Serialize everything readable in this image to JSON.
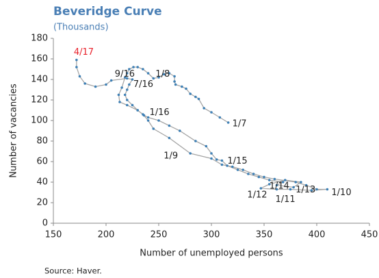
{
  "chart_data": {
    "type": "connected-scatter",
    "title": "Beveridge Curve",
    "subtitle": "(Thousands)",
    "x_label": "Number of unemployed persons",
    "y_label": "Number of vacancies",
    "source": "Source: Haver.",
    "xlim": [
      150,
      450
    ],
    "xticks": [
      150,
      200,
      250,
      300,
      350,
      400,
      450
    ],
    "ylim": [
      0,
      180
    ],
    "yticks": [
      0,
      20,
      40,
      60,
      80,
      100,
      120,
      140,
      160,
      180
    ],
    "line_color": "#a6a6a6",
    "marker_color": "#3e80b5",
    "point_label_color": "#222222",
    "latest_label_color": "#e8202a",
    "x": [
      316,
      308,
      300,
      293,
      288,
      285,
      280,
      276,
      272,
      266,
      265,
      265,
      260,
      255,
      250,
      245,
      240,
      235,
      230,
      226,
      222,
      220,
      218,
      215,
      212,
      213,
      220,
      230,
      235,
      240,
      245,
      260,
      280,
      300,
      310,
      320,
      330,
      340,
      350,
      360,
      380,
      390,
      400,
      410,
      395,
      375,
      362,
      347,
      355,
      370,
      385,
      378,
      362,
      368,
      355,
      345,
      335,
      325,
      315,
      310,
      305,
      300,
      295,
      285,
      270,
      260,
      250,
      240,
      236,
      230,
      225,
      220,
      218,
      220,
      222,
      225,
      220,
      205,
      200,
      190,
      180,
      175,
      172,
      172
    ],
    "y": [
      98,
      103,
      108,
      112,
      121,
      123,
      126,
      131,
      133,
      135,
      138,
      143,
      146,
      145,
      142,
      141,
      146,
      150,
      152,
      152,
      150,
      146,
      142,
      132,
      125,
      118,
      115,
      110,
      106,
      100,
      92,
      83,
      68,
      63,
      57,
      55,
      52,
      48,
      45,
      43,
      40,
      37,
      33,
      33,
      32,
      33,
      33,
      34,
      38,
      42,
      40,
      35,
      37,
      40,
      42,
      45,
      48,
      52,
      56,
      61,
      62,
      68,
      75,
      80,
      90,
      95,
      100,
      103,
      105,
      110,
      115,
      120,
      125,
      130,
      135,
      140,
      141,
      139,
      135,
      133,
      136,
      143,
      152,
      159
    ],
    "point_labels": [
      "1/7",
      null,
      null,
      null,
      null,
      null,
      null,
      null,
      null,
      null,
      null,
      null,
      null,
      null,
      null,
      "1/8",
      null,
      null,
      null,
      null,
      null,
      null,
      null,
      null,
      null,
      null,
      null,
      null,
      null,
      null,
      null,
      null,
      "1/9",
      null,
      null,
      null,
      null,
      null,
      null,
      null,
      null,
      null,
      null,
      "1/10",
      null,
      null,
      "1/11",
      "1/12",
      null,
      null,
      null,
      "1/13",
      null,
      "1/14",
      null,
      null,
      null,
      null,
      null,
      "1/15",
      null,
      null,
      null,
      null,
      null,
      null,
      null,
      null,
      "1/16",
      null,
      null,
      null,
      null,
      null,
      "7/16",
      null,
      "9/16",
      null,
      null,
      null,
      null,
      null,
      null,
      "4/17"
    ]
  }
}
